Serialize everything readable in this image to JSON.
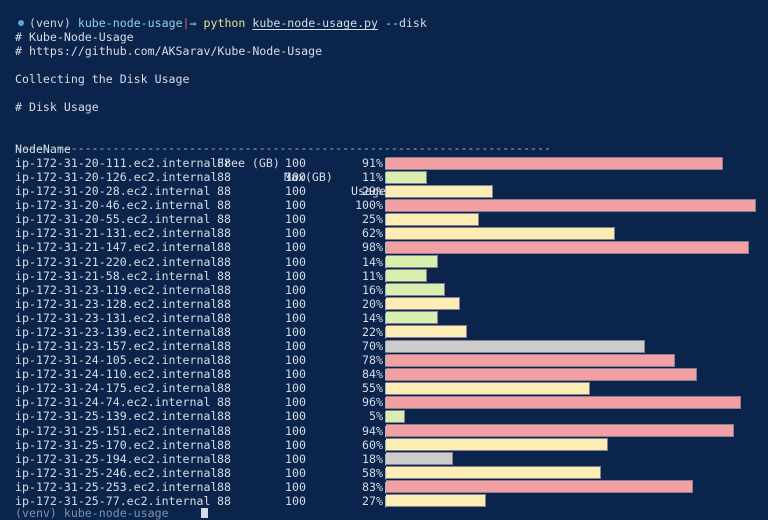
{
  "prompt": {
    "venv": "(venv)",
    "directory": "kube-node-usage",
    "separator": "|",
    "arrow": "⇒",
    "command": "python",
    "script": "kube-node-usage.py",
    "args": "--disk"
  },
  "output": {
    "banner_title": "# Kube-Node-Usage",
    "banner_url": "# https://github.com/AKSarav/Kube-Node-Usage",
    "status": "Collecting the Disk Usage",
    "section_title": "# Disk Usage",
    "divider": "-----------------------------------------------------------------------------"
  },
  "table": {
    "headers": {
      "node_name": "NodeName",
      "free": "Free (GB)",
      "max": "Max(GB)",
      "usage": "Usage(%)"
    },
    "rows": [
      {
        "node": "ip-172-31-20-111.ec2.internal",
        "free": "88",
        "max": "100",
        "usage": "91%",
        "level": "high"
      },
      {
        "node": "ip-172-31-20-126.ec2.internal",
        "free": "88",
        "max": "100",
        "usage": "11%",
        "level": "low"
      },
      {
        "node": "ip-172-31-20-28.ec2.internal",
        "free": "88",
        "max": "100",
        "usage": "29%",
        "level": "medium"
      },
      {
        "node": "ip-172-31-20-46.ec2.internal",
        "free": "88",
        "max": "100",
        "usage": "100%",
        "level": "high"
      },
      {
        "node": "ip-172-31-20-55.ec2.internal",
        "free": "88",
        "max": "100",
        "usage": "25%",
        "level": "medium"
      },
      {
        "node": "ip-172-31-21-131.ec2.internal",
        "free": "88",
        "max": "100",
        "usage": "62%",
        "level": "medium"
      },
      {
        "node": "ip-172-31-21-147.ec2.internal",
        "free": "88",
        "max": "100",
        "usage": "98%",
        "level": "high"
      },
      {
        "node": "ip-172-31-21-220.ec2.internal",
        "free": "88",
        "max": "100",
        "usage": "14%",
        "level": "low"
      },
      {
        "node": "ip-172-31-21-58.ec2.internal",
        "free": "88",
        "max": "100",
        "usage": "11%",
        "level": "low"
      },
      {
        "node": "ip-172-31-23-119.ec2.internal",
        "free": "88",
        "max": "100",
        "usage": "16%",
        "level": "low"
      },
      {
        "node": "ip-172-31-23-128.ec2.internal",
        "free": "88",
        "max": "100",
        "usage": "20%",
        "level": "medium"
      },
      {
        "node": "ip-172-31-23-131.ec2.internal",
        "free": "88",
        "max": "100",
        "usage": "14%",
        "level": "low"
      },
      {
        "node": "ip-172-31-23-139.ec2.internal",
        "free": "88",
        "max": "100",
        "usage": "22%",
        "level": "medium"
      },
      {
        "node": "ip-172-31-23-157.ec2.internal",
        "free": "88",
        "max": "100",
        "usage": "70%",
        "level": "unknown"
      },
      {
        "node": "ip-172-31-24-105.ec2.internal",
        "free": "88",
        "max": "100",
        "usage": "78%",
        "level": "high"
      },
      {
        "node": "ip-172-31-24-110.ec2.internal",
        "free": "88",
        "max": "100",
        "usage": "84%",
        "level": "high"
      },
      {
        "node": "ip-172-31-24-175.ec2.internal",
        "free": "88",
        "max": "100",
        "usage": "55%",
        "level": "medium"
      },
      {
        "node": "ip-172-31-24-74.ec2.internal",
        "free": "88",
        "max": "100",
        "usage": "96%",
        "level": "high"
      },
      {
        "node": "ip-172-31-25-139.ec2.internal",
        "free": "88",
        "max": "100",
        "usage": "5%",
        "level": "low"
      },
      {
        "node": "ip-172-31-25-151.ec2.internal",
        "free": "88",
        "max": "100",
        "usage": "94%",
        "level": "high"
      },
      {
        "node": "ip-172-31-25-170.ec2.internal",
        "free": "88",
        "max": "100",
        "usage": "60%",
        "level": "medium"
      },
      {
        "node": "ip-172-31-25-194.ec2.internal",
        "free": "88",
        "max": "100",
        "usage": "18%",
        "level": "unknown"
      },
      {
        "node": "ip-172-31-25-246.ec2.internal",
        "free": "88",
        "max": "100",
        "usage": "58%",
        "level": "medium"
      },
      {
        "node": "ip-172-31-25-253.ec2.internal",
        "free": "88",
        "max": "100",
        "usage": "83%",
        "level": "high"
      },
      {
        "node": "ip-172-31-25-77.ec2.internal",
        "free": "88",
        "max": "100",
        "usage": "27%",
        "level": "medium"
      }
    ]
  },
  "bar_colors": {
    "high": "#f2a0a4",
    "medium": "#fcedb4",
    "low": "#d9efb0",
    "unknown": "#cccccc"
  },
  "bar_percent_values": [
    91,
    11,
    29,
    100,
    25,
    62,
    98,
    14,
    11,
    16,
    20,
    14,
    22,
    70,
    78,
    84,
    55,
    96,
    5,
    94,
    60,
    18,
    58,
    83,
    27
  ],
  "next_prompt_partial": "(venv) kube-node-usage"
}
